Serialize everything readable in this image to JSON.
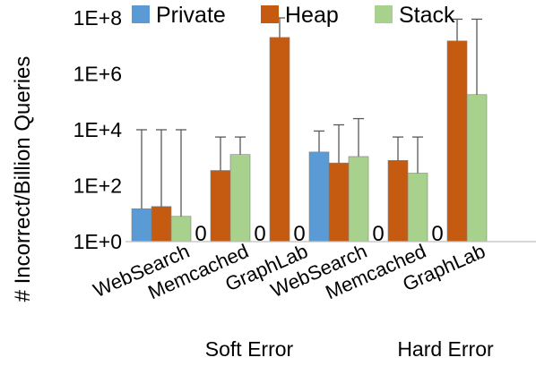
{
  "chart_data": {
    "type": "bar",
    "ylabel": "# Incorrect/Billion Queries",
    "yscale": "log",
    "ylim": [
      1,
      100000000
    ],
    "yticks": [
      {
        "value": 1,
        "label": "1E+0"
      },
      {
        "value": 100,
        "label": "1E+2"
      },
      {
        "value": 10000,
        "label": "1E+4"
      },
      {
        "value": 1000000,
        "label": "1E+6"
      },
      {
        "value": 100000000,
        "label": "1E+8"
      }
    ],
    "legend_position": "top",
    "groups": [
      {
        "label": "Soft Error",
        "categories": [
          "WebSearch",
          "Memcached",
          "GraphLab"
        ]
      },
      {
        "label": "Hard Error",
        "categories": [
          "WebSearch",
          "Memcached",
          "GraphLab"
        ]
      }
    ],
    "categories": [
      "WebSearch",
      "Memcached",
      "GraphLab",
      "WebSearch",
      "Memcached",
      "GraphLab"
    ],
    "zero_label": "0",
    "series": [
      {
        "name": "Private",
        "color": "#5b9bd5",
        "values": [
          15,
          0,
          0,
          1600,
          0,
          0
        ],
        "error_upper": [
          10000,
          null,
          null,
          9000,
          null,
          null
        ]
      },
      {
        "name": "Heap",
        "color": "#c55a11",
        "values": [
          18,
          350,
          20000000,
          650,
          800,
          15000000
        ],
        "error_upper": [
          10000,
          5500,
          100000000,
          15000,
          5500,
          90000000
        ]
      },
      {
        "name": "Stack",
        "color": "#a9d18e",
        "values": [
          8,
          1300,
          0,
          1100,
          280,
          180000
        ],
        "error_upper": [
          10000,
          5500,
          null,
          25000,
          5500,
          90000000
        ]
      }
    ]
  }
}
